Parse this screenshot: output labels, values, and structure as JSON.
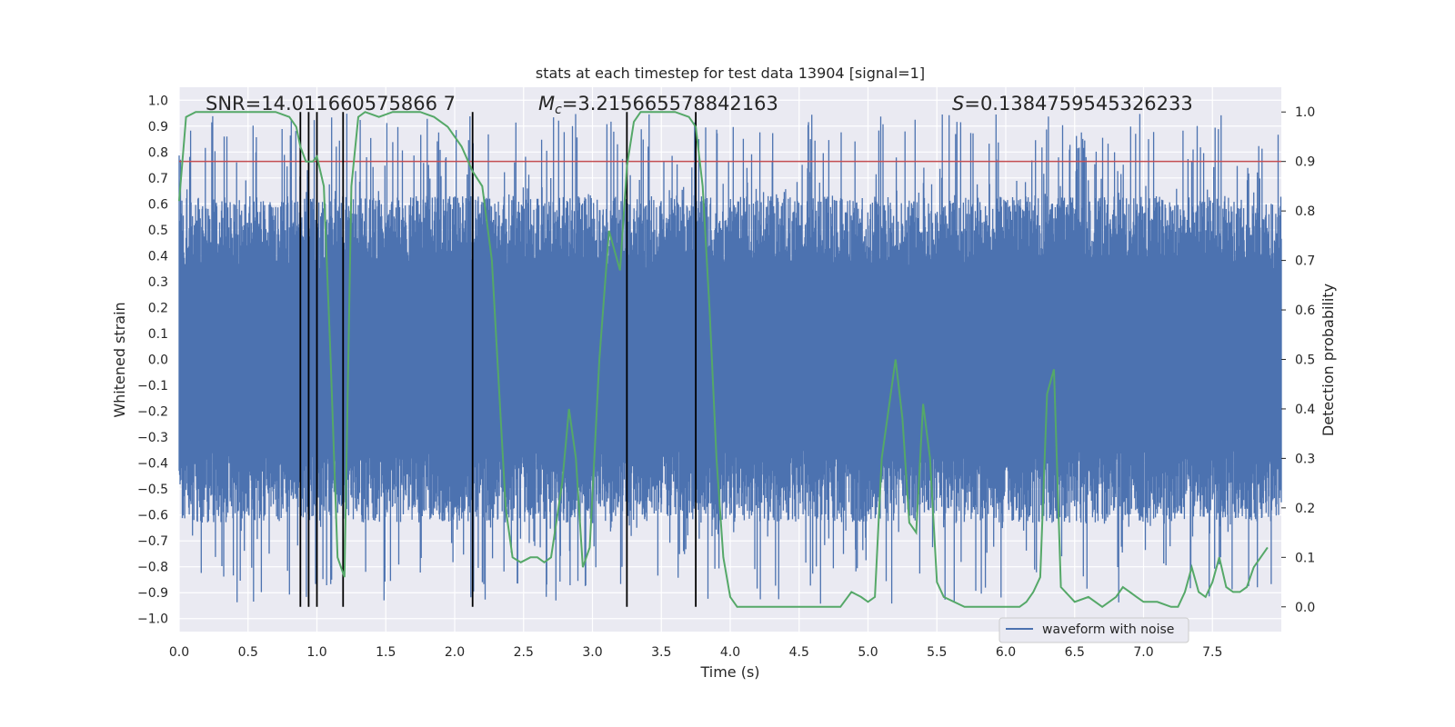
{
  "chart_data": {
    "type": "line",
    "title": "stats at each timestep for test data 13904 [signal=1]",
    "xlabel": "Time (s)",
    "ylabel_left": "Whitened strain",
    "ylabel_right": "Detection probability",
    "xlim": [
      0.0,
      8.0
    ],
    "ylim_left": [
      -1.05,
      1.05
    ],
    "ylim_right": [
      -0.05,
      1.05
    ],
    "grid": true,
    "x_ticks": [
      "0.0",
      "0.5",
      "1.0",
      "1.5",
      "2.0",
      "2.5",
      "3.0",
      "3.5",
      "4.0",
      "4.5",
      "5.0",
      "5.5",
      "6.0",
      "6.5",
      "7.0",
      "7.5"
    ],
    "y_left_ticks": [
      "1.0",
      "0.9",
      "0.8",
      "0.7",
      "0.6",
      "0.5",
      "0.4",
      "0.3",
      "0.2",
      "0.1",
      "0.0",
      "−0.1",
      "−0.2",
      "−0.3",
      "−0.4",
      "−0.5",
      "−0.6",
      "−0.7",
      "−0.8",
      "−0.9",
      "−1.0"
    ],
    "y_right_ticks": [
      "1.0",
      "0.9",
      "0.8",
      "0.7",
      "0.6",
      "0.5",
      "0.4",
      "0.3",
      "0.2",
      "0.1",
      "0.0"
    ],
    "annotations": {
      "snr": "SNR=14.011660575866 7",
      "mc_symbol": "M",
      "mc_sub": "c",
      "mc_value": "=3.215665578842163",
      "s_symbol": "S",
      "s_value": "=0.1384759545326233"
    },
    "legend": {
      "label": "waveform with noise",
      "placement": "lower-right"
    },
    "threshold": {
      "value": 0.9,
      "axis": "right",
      "color": "#c44e52"
    },
    "event_lines_x": [
      0.88,
      0.94,
      1.0,
      1.19,
      2.13,
      3.25,
      3.75
    ],
    "probability_series": {
      "name": "detection probability",
      "color": "#55a868",
      "x": [
        0.0,
        0.05,
        0.12,
        0.2,
        0.3,
        0.4,
        0.5,
        0.6,
        0.7,
        0.8,
        0.85,
        0.88,
        0.92,
        0.97,
        1.0,
        1.05,
        1.1,
        1.15,
        1.2,
        1.25,
        1.3,
        1.35,
        1.45,
        1.55,
        1.65,
        1.75,
        1.85,
        1.95,
        2.05,
        2.13,
        2.2,
        2.27,
        2.32,
        2.37,
        2.42,
        2.48,
        2.55,
        2.6,
        2.65,
        2.7,
        2.78,
        2.83,
        2.88,
        2.93,
        2.98,
        3.05,
        3.12,
        3.2,
        3.25,
        3.3,
        3.35,
        3.42,
        3.5,
        3.6,
        3.7,
        3.75,
        3.8,
        3.85,
        3.9,
        3.95,
        4.0,
        4.05,
        4.15,
        4.3,
        4.4,
        4.5,
        4.6,
        4.8,
        4.88,
        4.95,
        5.0,
        5.05,
        5.1,
        5.15,
        5.2,
        5.25,
        5.3,
        5.35,
        5.4,
        5.45,
        5.5,
        5.55,
        5.7,
        5.8,
        6.0,
        6.1,
        6.15,
        6.2,
        6.25,
        6.3,
        6.35,
        6.4,
        6.5,
        6.6,
        6.7,
        6.8,
        6.85,
        6.9,
        6.95,
        7.0,
        7.1,
        7.2,
        7.25,
        7.3,
        7.35,
        7.4,
        7.45,
        7.5,
        7.55,
        7.6,
        7.65,
        7.7,
        7.75,
        7.8,
        7.9
      ],
      "y": [
        0.82,
        0.99,
        1.0,
        1.0,
        1.0,
        1.0,
        1.0,
        1.0,
        1.0,
        0.99,
        0.97,
        0.93,
        0.9,
        0.9,
        0.91,
        0.85,
        0.5,
        0.1,
        0.06,
        0.85,
        0.99,
        1.0,
        0.99,
        1.0,
        1.0,
        1.0,
        0.99,
        0.97,
        0.93,
        0.88,
        0.85,
        0.7,
        0.45,
        0.2,
        0.1,
        0.09,
        0.1,
        0.1,
        0.09,
        0.1,
        0.25,
        0.4,
        0.3,
        0.08,
        0.12,
        0.5,
        0.76,
        0.68,
        0.89,
        0.98,
        1.0,
        1.0,
        1.0,
        1.0,
        0.99,
        0.97,
        0.85,
        0.6,
        0.3,
        0.1,
        0.02,
        0.0,
        0.0,
        0.0,
        0.0,
        0.0,
        0.0,
        0.0,
        0.03,
        0.02,
        0.01,
        0.02,
        0.3,
        0.4,
        0.5,
        0.38,
        0.17,
        0.15,
        0.41,
        0.3,
        0.05,
        0.02,
        0.0,
        0.0,
        0.0,
        0.0,
        0.01,
        0.03,
        0.06,
        0.43,
        0.48,
        0.04,
        0.01,
        0.02,
        0.0,
        0.02,
        0.04,
        0.03,
        0.02,
        0.01,
        0.01,
        0.0,
        0.0,
        0.03,
        0.08,
        0.03,
        0.02,
        0.05,
        0.1,
        0.04,
        0.03,
        0.03,
        0.04,
        0.08,
        0.12
      ]
    },
    "waveform_series": {
      "name": "waveform with noise",
      "color": "#4c72b0",
      "x_range": [
        0.0,
        8.0
      ],
      "core_amplitude": 0.35,
      "peak_amplitude": 0.95
    }
  }
}
